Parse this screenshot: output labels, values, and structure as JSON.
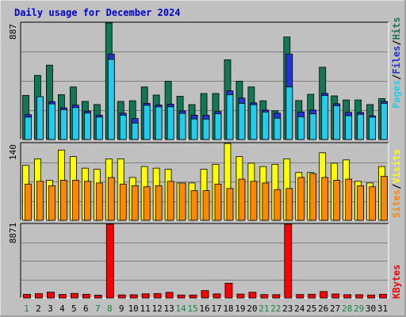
{
  "title": "Daily usage for December 2024",
  "colors": {
    "background": "#c0c0c0",
    "hits": "#117755",
    "files": "#2233dd",
    "pages": "#22ccee",
    "visits": "#ffff00",
    "sites": "#ff8800",
    "kbytes": "#ff0000",
    "weekend_label": "#118844",
    "weekday_label": "#000000"
  },
  "chart_data": [
    {
      "type": "bar",
      "panel": "hits-files-pages",
      "ymax_label": "887",
      "ylim": [
        0,
        887
      ],
      "categories": [
        "1",
        "2",
        "3",
        "4",
        "5",
        "6",
        "7",
        "8",
        "9",
        "10",
        "11",
        "12",
        "13",
        "14",
        "15",
        "16",
        "17",
        "18",
        "19",
        "20",
        "21",
        "22",
        "23",
        "24",
        "25",
        "26",
        "27",
        "28",
        "29",
        "30",
        "31"
      ],
      "weekend_days": [
        "1",
        "7",
        "8",
        "14",
        "15",
        "21",
        "22",
        "28",
        "29"
      ],
      "legend": [
        "Pages",
        "Files",
        "Hits"
      ],
      "series": [
        {
          "name": "Hits",
          "values": [
            336,
            488,
            566,
            341,
            400,
            290,
            266,
            887,
            290,
            295,
            400,
            338,
            444,
            329,
            266,
            350,
            350,
            607,
            444,
            400,
            295,
            218,
            780,
            296,
            344,
            550,
            332,
            301,
            301,
            266,
            311
          ]
        },
        {
          "name": "Files",
          "values": [
            189,
            326,
            288,
            241,
            262,
            216,
            185,
            650,
            200,
            160,
            275,
            263,
            269,
            218,
            185,
            185,
            213,
            370,
            315,
            279,
            224,
            200,
            650,
            210,
            224,
            351,
            272,
            206,
            206,
            180,
            290
          ]
        },
        {
          "name": "Pages",
          "values": [
            170,
            326,
            271,
            226,
            243,
            201,
            170,
            610,
            185,
            125,
            260,
            248,
            249,
            199,
            156,
            155,
            196,
            341,
            275,
            265,
            209,
            162,
            400,
            173,
            195,
            335,
            257,
            181,
            191,
            170,
            275
          ]
        }
      ]
    },
    {
      "type": "bar",
      "panel": "visits-sites",
      "ymax_label": "140",
      "ylim": [
        0,
        140
      ],
      "categories": [
        "1",
        "2",
        "3",
        "4",
        "5",
        "6",
        "7",
        "8",
        "9",
        "10",
        "11",
        "12",
        "13",
        "14",
        "15",
        "16",
        "17",
        "18",
        "19",
        "20",
        "21",
        "22",
        "23",
        "24",
        "25",
        "26",
        "27",
        "28",
        "29",
        "30",
        "31"
      ],
      "legend": [
        "Sites",
        "Visits"
      ],
      "series": [
        {
          "name": "Visits",
          "values": [
            100,
            112,
            73,
            128,
            116,
            95,
            93,
            112,
            112,
            78,
            98,
            95,
            93,
            68,
            68,
            93,
            102,
            140,
            116,
            104,
            98,
            102,
            112,
            87,
            87,
            123,
            104,
            110,
            71,
            68,
            98
          ]
        },
        {
          "name": "Sites",
          "values": [
            66,
            71,
            63,
            73,
            73,
            71,
            68,
            78,
            66,
            63,
            61,
            63,
            71,
            68,
            54,
            54,
            66,
            58,
            75,
            71,
            68,
            56,
            58,
            78,
            85,
            78,
            73,
            75,
            63,
            61,
            80
          ]
        }
      ]
    },
    {
      "type": "bar",
      "panel": "kbytes",
      "ymax_label": "8871",
      "ylim": [
        0,
        8871
      ],
      "categories": [
        "1",
        "2",
        "3",
        "4",
        "5",
        "6",
        "7",
        "8",
        "9",
        "10",
        "11",
        "12",
        "13",
        "14",
        "15",
        "16",
        "17",
        "18",
        "19",
        "20",
        "21",
        "22",
        "23",
        "24",
        "25",
        "26",
        "27",
        "28",
        "29",
        "30",
        "31"
      ],
      "legend": [
        "KBytes"
      ],
      "series": [
        {
          "name": "KBytes",
          "values": [
            430,
            520,
            705,
            420,
            550,
            445,
            340,
            8871,
            370,
            385,
            500,
            525,
            680,
            360,
            360,
            890,
            495,
            1780,
            470,
            690,
            410,
            400,
            8871,
            415,
            450,
            780,
            480,
            400,
            395,
            360,
            445
          ]
        }
      ]
    }
  ]
}
